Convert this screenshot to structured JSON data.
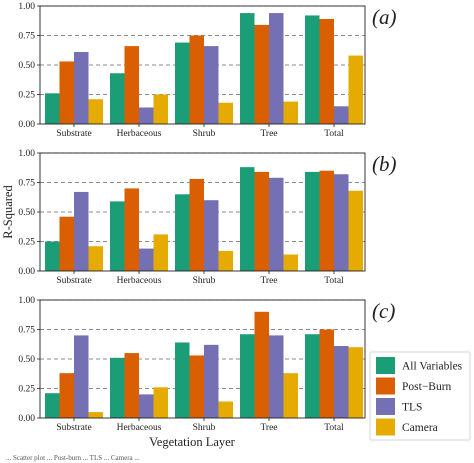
{
  "colors": {
    "All Variables": "#1b9e77",
    "Post-Burn": "#d95f02",
    "TLS": "#7570b3",
    "Camera": "#e6ab02"
  },
  "figure": {
    "ylabel": "R-Squared",
    "xlabel": "Vegetation Layer",
    "caption": "... Scatter plot ... Post-burn ... TLS ... Camera ..."
  },
  "legend": {
    "placement": "right-of-bottom-panel",
    "entries": [
      "All Variables",
      "Post−Burn",
      "TLS",
      "Camera"
    ]
  },
  "chart_data": [
    {
      "type": "bar",
      "panel_label": "(a)",
      "categories": [
        "Substrate",
        "Herbaceous",
        "Shrub",
        "Tree",
        "Total"
      ],
      "ylim": [
        0,
        1
      ],
      "yticks": [
        "0.00",
        "0.25",
        "0.50",
        "0.75",
        "1.00"
      ],
      "grid": "dashed-horizontal",
      "series": [
        {
          "key": "All Variables",
          "values": [
            0.26,
            0.43,
            0.69,
            0.94,
            0.92
          ]
        },
        {
          "key": "Post-Burn",
          "values": [
            0.53,
            0.66,
            0.75,
            0.84,
            0.89
          ]
        },
        {
          "key": "TLS",
          "values": [
            0.61,
            0.14,
            0.66,
            0.94,
            0.15
          ]
        },
        {
          "key": "Camera",
          "values": [
            0.21,
            0.25,
            0.18,
            0.19,
            0.58
          ]
        }
      ]
    },
    {
      "type": "bar",
      "panel_label": "(b)",
      "categories": [
        "Substrate",
        "Herbaceous",
        "Shrub",
        "Tree",
        "Total"
      ],
      "ylim": [
        0,
        1
      ],
      "yticks": [
        "0.00",
        "0.25",
        "0.50",
        "0.75",
        "1.00"
      ],
      "grid": "dashed-horizontal",
      "series": [
        {
          "key": "All Variables",
          "values": [
            0.25,
            0.59,
            0.65,
            0.88,
            0.84
          ]
        },
        {
          "key": "Post-Burn",
          "values": [
            0.46,
            0.7,
            0.78,
            0.84,
            0.85
          ]
        },
        {
          "key": "TLS",
          "values": [
            0.67,
            0.19,
            0.6,
            0.79,
            0.82
          ]
        },
        {
          "key": "Camera",
          "values": [
            0.21,
            0.31,
            0.17,
            0.14,
            0.68
          ]
        }
      ]
    },
    {
      "type": "bar",
      "panel_label": "(c)",
      "categories": [
        "Substrate",
        "Herbaceous",
        "Shrub",
        "Tree",
        "Total"
      ],
      "ylim": [
        0,
        1
      ],
      "yticks": [
        "0.00",
        "0.25",
        "0.50",
        "0.75",
        "1.00"
      ],
      "grid": "dashed-horizontal",
      "series": [
        {
          "key": "All Variables",
          "values": [
            0.21,
            0.51,
            0.64,
            0.71,
            0.71
          ]
        },
        {
          "key": "Post-Burn",
          "values": [
            0.38,
            0.55,
            0.53,
            0.9,
            0.75
          ]
        },
        {
          "key": "TLS",
          "values": [
            0.7,
            0.2,
            0.62,
            0.7,
            0.61
          ]
        },
        {
          "key": "Camera",
          "values": [
            0.05,
            0.26,
            0.14,
            0.38,
            0.6
          ]
        }
      ]
    }
  ]
}
